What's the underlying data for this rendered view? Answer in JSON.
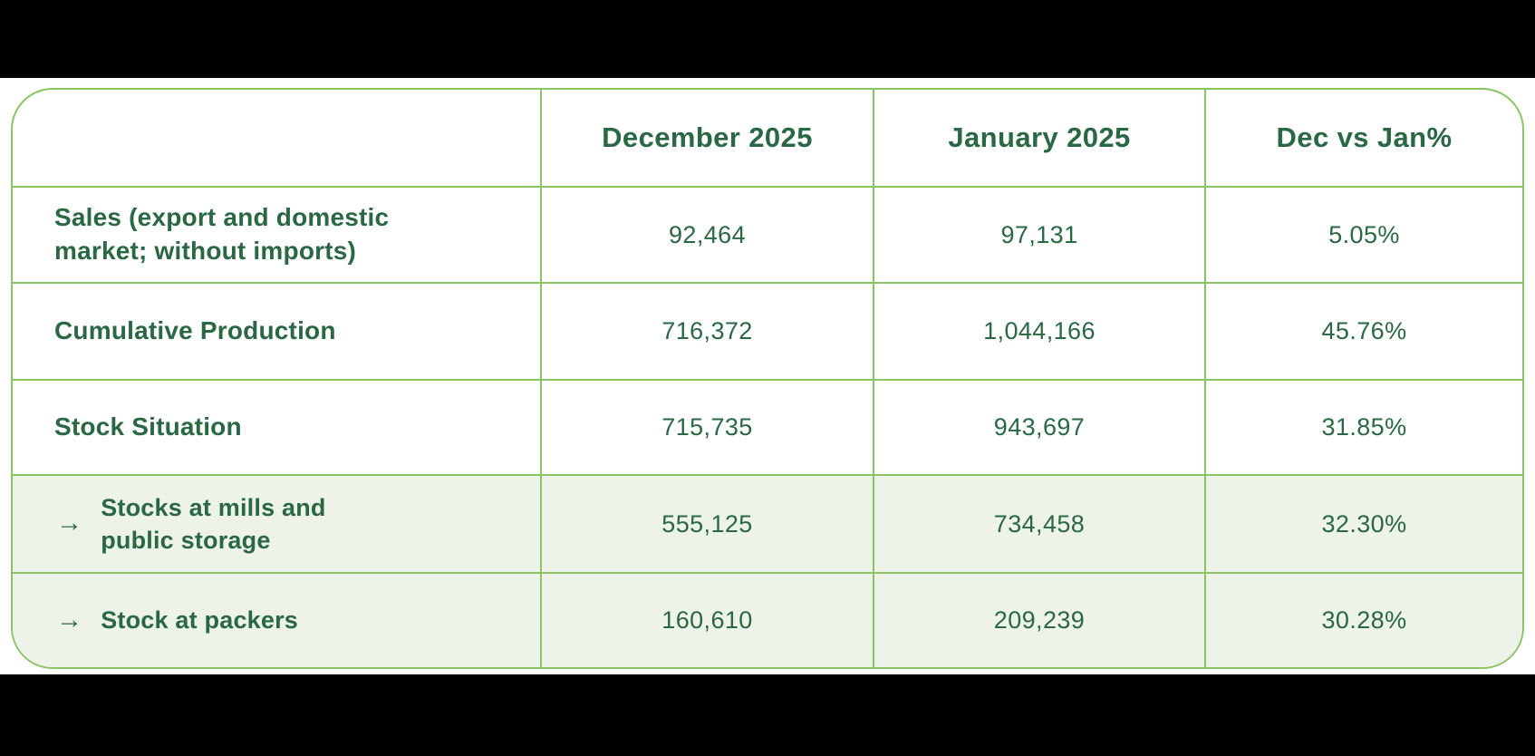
{
  "page": {
    "letterbox_color": "#000000",
    "panel_bg": "#ffffff"
  },
  "colors": {
    "text_green": "#2a6843",
    "border_green": "#89c465",
    "highlight_row_bg": "#edf3e8"
  },
  "table": {
    "arrow_glyph": "→",
    "columns": [
      "",
      "December 2025",
      "January 2025",
      "Dec vs Jan%"
    ],
    "rows": [
      {
        "label": "Sales (export and domestic market; without imports)",
        "indent": false,
        "values": [
          "92,464",
          "97,131",
          "5.05%"
        ]
      },
      {
        "label": "Cumulative Production",
        "indent": false,
        "values": [
          "716,372",
          "1,044,166",
          "45.76%"
        ]
      },
      {
        "label": "Stock Situation",
        "indent": false,
        "values": [
          "715,735",
          "943,697",
          "31.85%"
        ]
      },
      {
        "label": "Stocks at mills and public storage",
        "indent": true,
        "values": [
          "555,125",
          "734,458",
          "32.30%"
        ]
      },
      {
        "label": "Stock at packers",
        "indent": true,
        "values": [
          "160,610",
          "209,239",
          "30.28%"
        ]
      }
    ]
  },
  "chart_data": {
    "type": "table",
    "title": "",
    "categories": [
      "Sales (export and domestic market; without imports)",
      "Cumulative Production",
      "Stock Situation",
      "Stocks at mills and public storage",
      "Stock at packers"
    ],
    "series": [
      {
        "name": "December 2025",
        "values": [
          92464,
          716372,
          715735,
          555125,
          160610
        ]
      },
      {
        "name": "January 2025",
        "values": [
          97131,
          1044166,
          943697,
          734458,
          209239
        ]
      },
      {
        "name": "Dec vs Jan%",
        "values": [
          "5.05%",
          "45.76%",
          "31.85%",
          "32.30%",
          "30.28%"
        ]
      }
    ]
  }
}
